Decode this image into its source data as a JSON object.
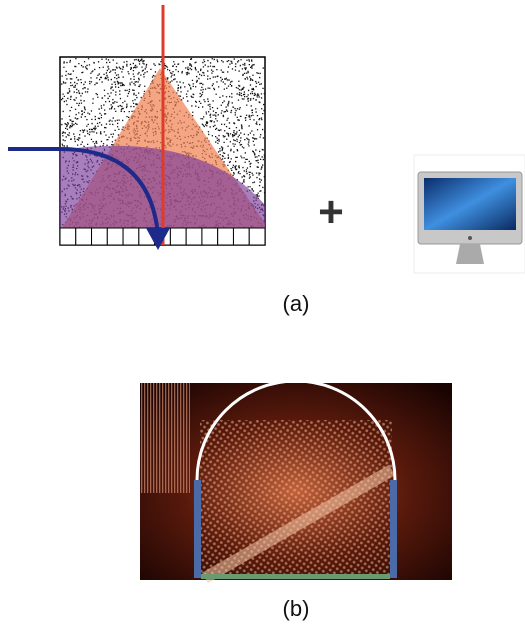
{
  "panels": [
    {
      "label": "(a)"
    },
    {
      "label": "(b)"
    }
  ],
  "operator": "+"
}
